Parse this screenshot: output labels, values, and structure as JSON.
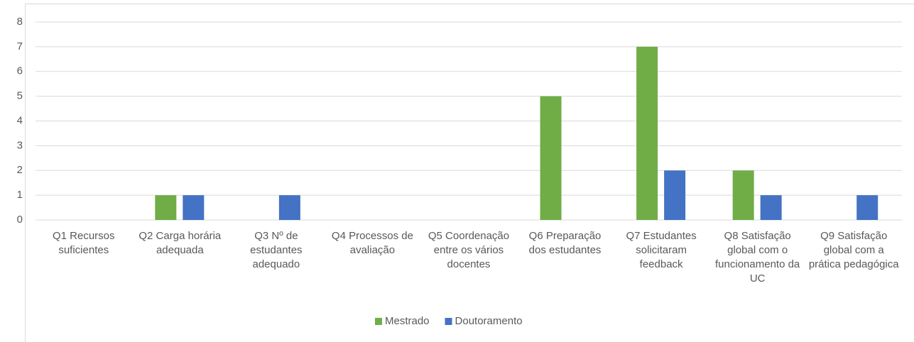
{
  "chart_data": {
    "type": "bar",
    "categories": [
      "Q1 Recursos suficientes",
      "Q2 Carga horária adequada",
      "Q3 Nº de estudantes adequado",
      "Q4 Processos de avaliação",
      "Q5 Coordenação entre os vários docentes",
      "Q6 Preparação dos estudantes",
      "Q7 Estudantes solicitaram feedback",
      "Q8 Satisfação global com o funcionamento da UC",
      "Q9 Satisfação global com a prática pedagógica"
    ],
    "series": [
      {
        "name": "Mestrado",
        "color": "#70ad47",
        "values": [
          0,
          1,
          0,
          0,
          0,
          5,
          7,
          2,
          0
        ]
      },
      {
        "name": "Doutoramento",
        "color": "#4472c4",
        "values": [
          0,
          1,
          1,
          0,
          0,
          0,
          2,
          1,
          1
        ]
      }
    ],
    "ylim": [
      0,
      8
    ],
    "yticks": [
      0,
      1,
      2,
      3,
      4,
      5,
      6,
      7,
      8
    ],
    "grid": true,
    "legend": "bottom"
  }
}
